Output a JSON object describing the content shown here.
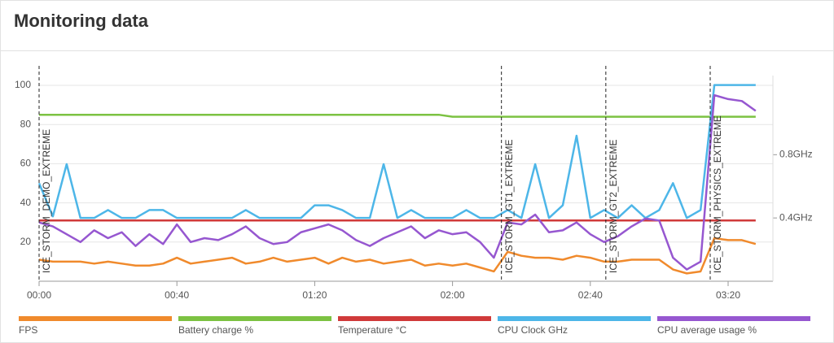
{
  "header": {
    "title": "Monitoring data"
  },
  "chart_data": {
    "type": "line",
    "x": [
      0,
      4,
      8,
      12,
      16,
      20,
      24,
      28,
      32,
      36,
      40,
      44,
      48,
      52,
      56,
      60,
      64,
      68,
      72,
      76,
      80,
      84,
      88,
      92,
      96,
      100,
      104,
      108,
      112,
      116,
      120,
      124,
      128,
      132,
      136,
      140,
      144,
      148,
      152,
      156,
      160,
      164,
      168,
      172,
      176,
      180,
      184,
      188,
      192,
      196,
      200,
      204,
      208
    ],
    "xlim": [
      0,
      213
    ],
    "xticks": [
      {
        "value": 0,
        "label": "00:00"
      },
      {
        "value": 40,
        "label": "00:40"
      },
      {
        "value": 80,
        "label": "01:20"
      },
      {
        "value": 120,
        "label": "02:00"
      },
      {
        "value": 160,
        "label": "02:40"
      },
      {
        "value": 200,
        "label": "03:20"
      }
    ],
    "ylim": [
      0,
      105
    ],
    "yticks": [
      20,
      40,
      60,
      80,
      100
    ],
    "y2lim": [
      0,
      1.3
    ],
    "y2ticks": [
      {
        "value": 0.4,
        "label": "0.4GHz"
      },
      {
        "value": 0.8,
        "label": "0.8GHz"
      }
    ],
    "grid": true,
    "legend": "bottom",
    "annotations": [
      {
        "x": 0,
        "label": "ICE_STORM_DEMO_EXTREME"
      },
      {
        "x": 134.2,
        "label": "ICE_STORM_GT1_EXTREME"
      },
      {
        "x": 164.5,
        "label": "ICE_STORM_GT2_EXTREME"
      },
      {
        "x": 194.8,
        "label": "ICE_STORM_PHYSICS_EXTREME"
      }
    ],
    "series": [
      {
        "name": "FPS",
        "color": "#f08a2c",
        "values": [
          11,
          10,
          10,
          10,
          9,
          10,
          9,
          8,
          8,
          9,
          12,
          9,
          10,
          11,
          12,
          9,
          10,
          12,
          10,
          11,
          12,
          9,
          12,
          10,
          11,
          9,
          10,
          11,
          8,
          9,
          8,
          9,
          7,
          5,
          15,
          13,
          12,
          12,
          11,
          13,
          12,
          10,
          10,
          11,
          11,
          11,
          6,
          4,
          5,
          22,
          21,
          21,
          19
        ]
      },
      {
        "name": "Battery charge %",
        "color": "#7cc242",
        "values": [
          85,
          85,
          85,
          85,
          85,
          85,
          85,
          85,
          85,
          85,
          85,
          85,
          85,
          85,
          85,
          85,
          85,
          85,
          85,
          85,
          85,
          85,
          85,
          85,
          85,
          85,
          85,
          85,
          85,
          85,
          84,
          84,
          84,
          84,
          84,
          84,
          84,
          84,
          84,
          84,
          84,
          84,
          84,
          84,
          84,
          84,
          84,
          84,
          84,
          84,
          84,
          84,
          84
        ]
      },
      {
        "name": "Temperature °C",
        "color": "#d03a3a",
        "values": [
          31,
          31,
          31,
          31,
          31,
          31,
          31,
          31,
          31,
          31,
          31,
          31,
          31,
          31,
          31,
          31,
          31,
          31,
          31,
          31,
          31,
          31,
          31,
          31,
          31,
          31,
          31,
          31,
          31,
          31,
          31,
          31,
          31,
          31,
          31,
          31,
          31,
          31,
          31,
          31,
          31,
          31,
          31,
          31,
          31,
          31,
          31,
          31,
          31,
          31,
          31,
          31,
          31
        ]
      },
      {
        "name": "CPU Clock GHz",
        "color": "#4db6e8",
        "axis": "y2",
        "values": [
          0.62,
          0.41,
          0.74,
          0.4,
          0.4,
          0.45,
          0.4,
          0.4,
          0.45,
          0.45,
          0.4,
          0.4,
          0.4,
          0.4,
          0.4,
          0.45,
          0.4,
          0.4,
          0.4,
          0.4,
          0.48,
          0.48,
          0.45,
          0.4,
          0.4,
          0.74,
          0.4,
          0.45,
          0.4,
          0.4,
          0.4,
          0.45,
          0.4,
          0.4,
          0.45,
          0.4,
          0.74,
          0.4,
          0.48,
          0.92,
          0.4,
          0.45,
          0.4,
          0.48,
          0.4,
          0.45,
          0.62,
          0.4,
          0.45,
          1.24,
          1.24,
          1.24,
          1.24
        ]
      },
      {
        "name": "CPU average usage %",
        "color": "#9657d0",
        "values": [
          30,
          28,
          24,
          20,
          26,
          22,
          25,
          18,
          24,
          19,
          29,
          20,
          22,
          21,
          24,
          28,
          22,
          19,
          20,
          25,
          27,
          29,
          26,
          21,
          18,
          22,
          25,
          28,
          22,
          26,
          24,
          25,
          20,
          12,
          30,
          29,
          34,
          25,
          26,
          30,
          24,
          20,
          23,
          28,
          32,
          31,
          12,
          6,
          10,
          95,
          93,
          92,
          87
        ]
      }
    ]
  }
}
